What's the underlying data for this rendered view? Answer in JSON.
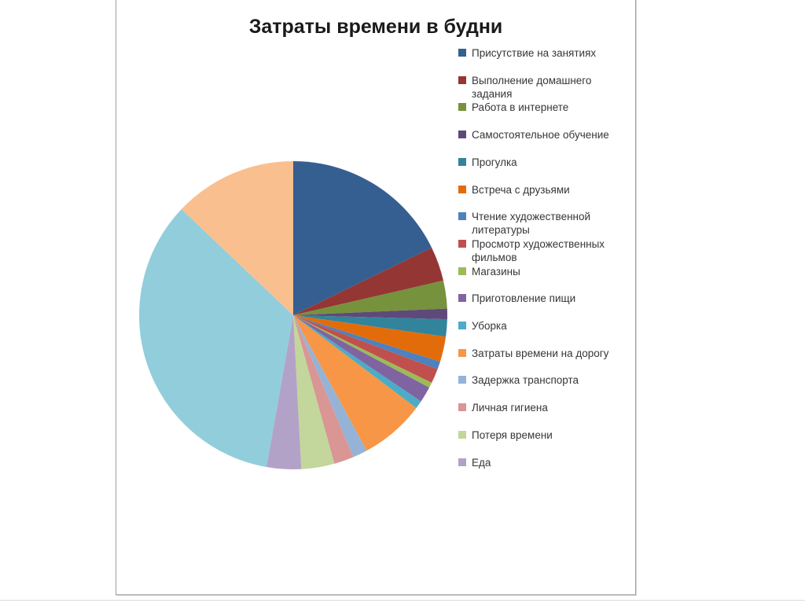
{
  "title": "Затраты времени в будни",
  "legend": {
    "position": "right",
    "items": [
      {
        "label": "Присутствие на занятиях",
        "color": "#365F91"
      },
      {
        "label": "Выполнение домашнего задания",
        "color": "#943634"
      },
      {
        "label": "Работа в интернете",
        "color": "#76923C"
      },
      {
        "label": "Самостоятельное обучение",
        "color": "#5F497A"
      },
      {
        "label": "Прогулка",
        "color": "#31849B"
      },
      {
        "label": "Встреча с друзьями",
        "color": "#E36C0A"
      },
      {
        "label": "Чтение художественной литературы",
        "color": "#4F81BD"
      },
      {
        "label": "Просмотр художественных фильмов",
        "color": "#C0504D"
      },
      {
        "label": "Магазины",
        "color": "#9BBB59"
      },
      {
        "label": "Приготовление пищи",
        "color": "#8064A2"
      },
      {
        "label": "Уборка",
        "color": "#4BACC6"
      },
      {
        "label": "Затраты времени на дорогу",
        "color": "#F79646"
      },
      {
        "label": "Задержка транспорта",
        "color": "#95B3D7"
      },
      {
        "label": "Личная гигиена",
        "color": "#D99694"
      },
      {
        "label": "Потеря времени",
        "color": "#C3D69B"
      },
      {
        "label": "Еда",
        "color": "#B3A2C7"
      }
    ]
  },
  "chart_data": {
    "type": "pie",
    "title": "Затраты времени в будни",
    "legend_position": "right",
    "start_angle_deg": 0,
    "direction": "clockwise",
    "slices": [
      {
        "label": "Присутствие на занятиях",
        "color": "#365F91",
        "start_deg": 0,
        "end_deg": 64,
        "percent": 17.8
      },
      {
        "label": "Выполнение домашнего задания",
        "color": "#943634",
        "start_deg": 64,
        "end_deg": 77,
        "percent": 3.6
      },
      {
        "label": "Работа в интернете",
        "color": "#76923C",
        "start_deg": 77,
        "end_deg": 87.5,
        "percent": 2.9
      },
      {
        "label": "Самостоятельное обучение",
        "color": "#5F497A",
        "start_deg": 87.5,
        "end_deg": 91.5,
        "percent": 1.1
      },
      {
        "label": "Прогулка",
        "color": "#31849B",
        "start_deg": 91.5,
        "end_deg": 98,
        "percent": 1.8
      },
      {
        "label": "Встреча с друзьями",
        "color": "#E36C0A",
        "start_deg": 98,
        "end_deg": 107.5,
        "percent": 2.6
      },
      {
        "label": "Чтение художественной литературы",
        "color": "#4F81BD",
        "start_deg": 107.5,
        "end_deg": 110.5,
        "percent": 0.8
      },
      {
        "label": "Просмотр художественных фильмов",
        "color": "#C0504D",
        "start_deg": 110.5,
        "end_deg": 116,
        "percent": 1.5
      },
      {
        "label": "Магазины",
        "color": "#9BBB59",
        "start_deg": 116,
        "end_deg": 118,
        "percent": 0.6
      },
      {
        "label": "Приготовление пищи",
        "color": "#8064A2",
        "start_deg": 118,
        "end_deg": 124,
        "percent": 1.7
      },
      {
        "label": "Уборка",
        "color": "#4BACC6",
        "start_deg": 124,
        "end_deg": 127,
        "percent": 0.8
      },
      {
        "label": "Затраты времени на дорогу",
        "color": "#F79646",
        "start_deg": 127,
        "end_deg": 151.5,
        "percent": 6.8
      },
      {
        "label": "Задержка транспорта",
        "color": "#95B3D7",
        "start_deg": 151.5,
        "end_deg": 157,
        "percent": 1.5
      },
      {
        "label": "Личная гигиена",
        "color": "#D99694",
        "start_deg": 157,
        "end_deg": 164.5,
        "percent": 2.1
      },
      {
        "label": "Потеря времени",
        "color": "#C3D69B",
        "start_deg": 164.5,
        "end_deg": 177,
        "percent": 3.5
      },
      {
        "label": "Еда",
        "color": "#B3A2C7",
        "start_deg": 177,
        "end_deg": 190,
        "percent": 3.6
      },
      {
        "label": "",
        "color": "#92CDDC",
        "start_deg": 190,
        "end_deg": 313.5,
        "percent": 34.3
      },
      {
        "label": "",
        "color": "#FABF8F",
        "start_deg": 313.5,
        "end_deg": 360,
        "percent": 12.9
      }
    ]
  }
}
